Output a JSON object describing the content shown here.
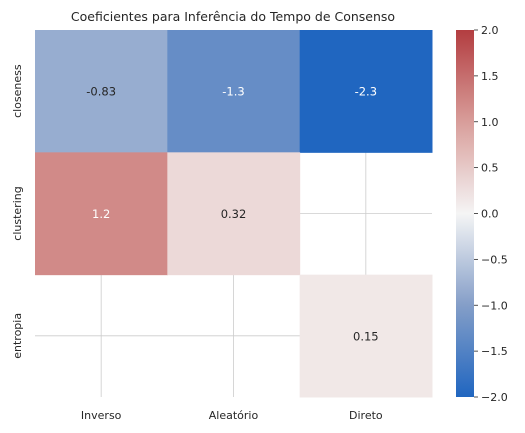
{
  "chart_data": {
    "type": "heatmap",
    "title": "Coeficientes para Inferência do Tempo de Consenso",
    "x_categories": [
      "Inverso",
      "Aleatório",
      "Direto"
    ],
    "y_categories": [
      "closeness",
      "clustering",
      "entropia"
    ],
    "values": [
      [
        -0.83,
        -1.3,
        -2.3
      ],
      [
        1.2,
        0.32,
        null
      ],
      [
        null,
        null,
        0.15
      ]
    ],
    "cell_labels": [
      [
        "-0.83",
        "-1.3",
        "-2.3"
      ],
      [
        "1.2",
        "0.32",
        ""
      ],
      [
        "",
        "",
        "0.15"
      ]
    ],
    "colorbar": {
      "range": [
        -2.0,
        2.0
      ],
      "ticks": [
        "2.0",
        "1.5",
        "1.0",
        "0.5",
        "0.0",
        "−0.5",
        "−1.0",
        "−1.5",
        "−2.0"
      ],
      "colormap": "vlag",
      "low_color": "#2066c0",
      "mid_color": "#f5f5f5",
      "high_color": "#b33d40"
    },
    "grid": true,
    "legend": "colorbar-right"
  }
}
